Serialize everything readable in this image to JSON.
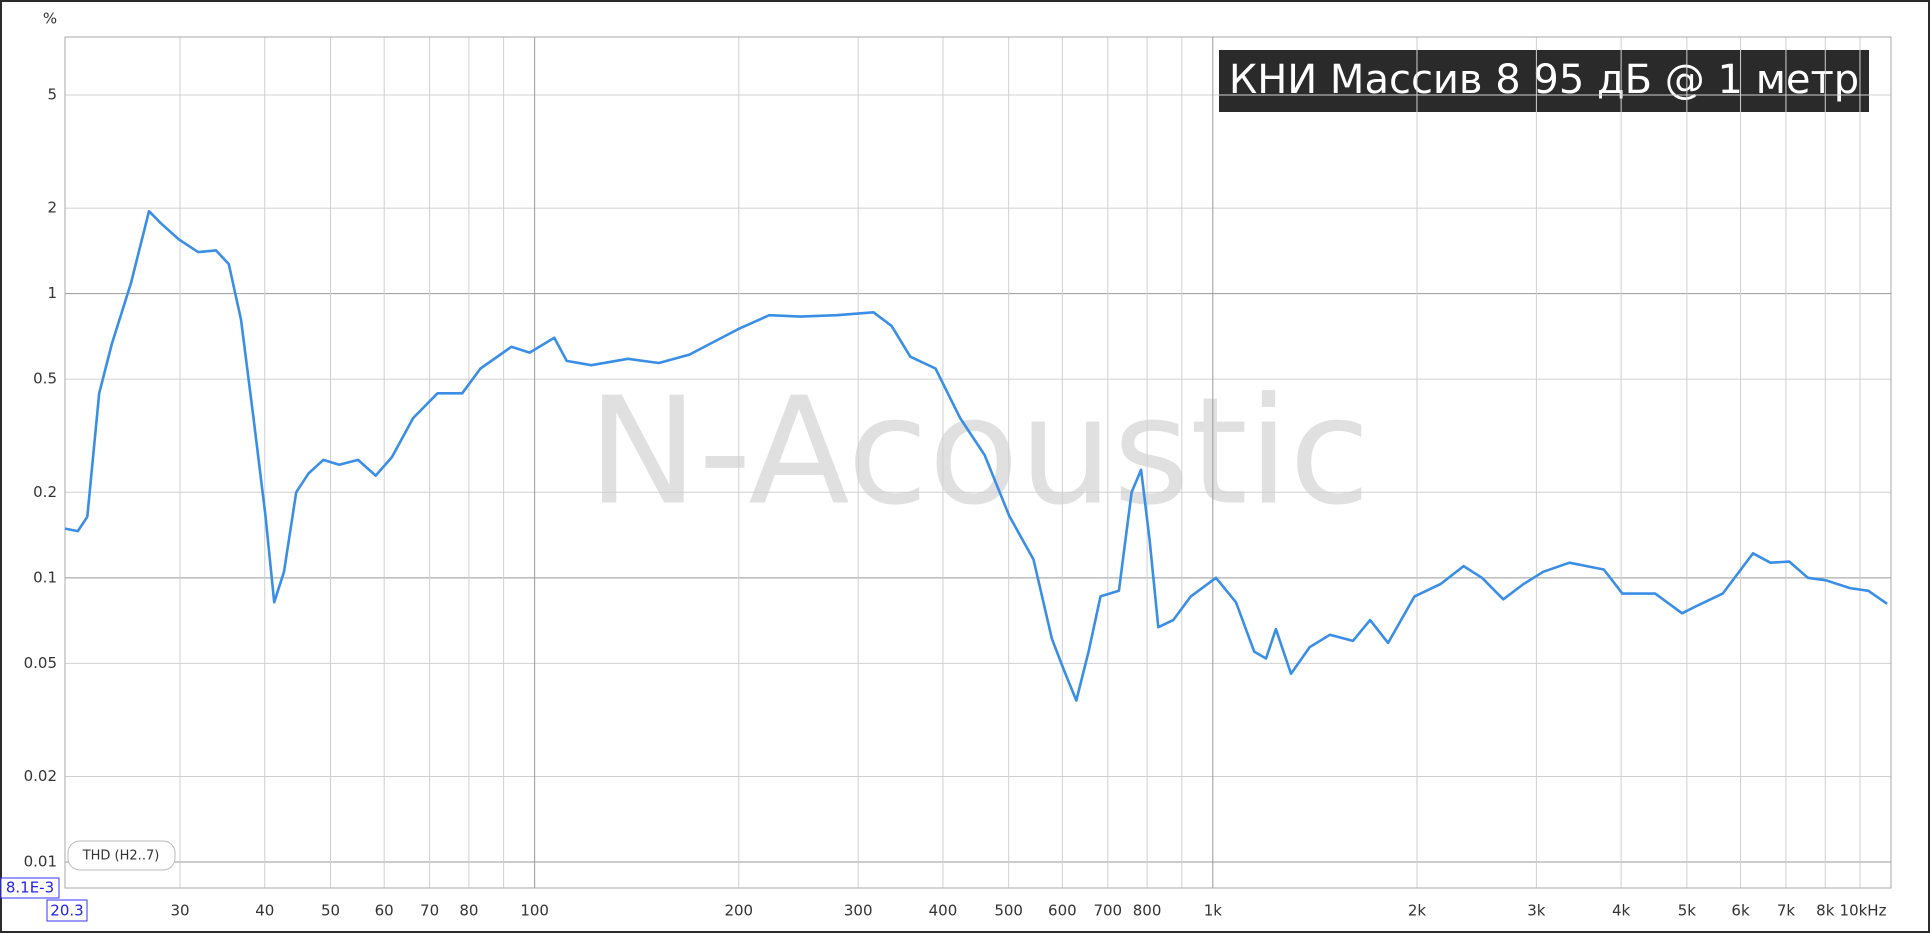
{
  "chart_data": {
    "type": "line",
    "title": "КНИ Массив 8 95 дБ @ 1 метр",
    "watermark": "N-Acoustic",
    "y_label": "%",
    "x_log": true,
    "y_log": true,
    "grid": true,
    "xlim": [
      20.3,
      10000
    ],
    "ylim": [
      0.0081,
      8
    ],
    "xticks": [
      20.3,
      30,
      40,
      50,
      60,
      70,
      80,
      100,
      200,
      300,
      400,
      500,
      600,
      700,
      800,
      {
        "value": 1000,
        "label": "1k"
      },
      {
        "value": 2000,
        "label": "2k"
      },
      {
        "value": 3000,
        "label": "3k"
      },
      {
        "value": 4000,
        "label": "4k"
      },
      {
        "value": 5000,
        "label": "5k"
      },
      {
        "value": 6000,
        "label": "6k"
      },
      {
        "value": 7000,
        "label": "7k"
      },
      {
        "value": 8000,
        "label": "8k"
      },
      {
        "value": 10000,
        "label": "10kHz"
      }
    ],
    "xminor": [
      90,
      900,
      9000
    ],
    "yticks": [
      {
        "value": 0.0081,
        "label": "8.1E-3"
      },
      0.01,
      0.02,
      0.05,
      0.1,
      0.2,
      0.5,
      1,
      2,
      5
    ],
    "series": [
      {
        "name": "THD (H2..7)",
        "color": "#3a8ee6",
        "x": [
          20.3,
          21.2,
          21.9,
          22.8,
          23.8,
          25.4,
          27.0,
          28.1,
          29.9,
          31.9,
          33.9,
          35.4,
          36.9,
          38.5,
          40.1,
          41.3,
          42.7,
          44.5,
          46.4,
          48.8,
          51.5,
          54.9,
          58.3,
          61.6,
          66.2,
          71.9,
          78.2,
          83.2,
          92.4,
          98.3,
          106.9,
          111.5,
          121.2,
          137.3,
          152.5,
          169.1,
          199.6,
          221.8,
          246.4,
          279,
          316,
          336,
          358,
          390,
          424,
          461,
          501,
          544,
          579,
          604,
          629,
          656,
          683,
          727,
          759,
          784,
          807,
          831,
          874,
          928,
          1011,
          1082,
          1151,
          1198,
          1239,
          1304,
          1389,
          1488,
          1609,
          1706,
          1813,
          1983,
          2166,
          2343,
          2494,
          2681,
          2871,
          3070,
          3357,
          3558,
          3772,
          4018,
          4490,
          4920,
          5189,
          5647,
          6259,
          6641,
          7079,
          7541,
          8020,
          8700,
          9260,
          9870
        ],
        "values": [
          0.149,
          0.146,
          0.164,
          0.446,
          0.665,
          1.09,
          1.95,
          1.77,
          1.55,
          1.4,
          1.42,
          1.27,
          0.81,
          0.365,
          0.165,
          0.082,
          0.105,
          0.2,
          0.233,
          0.26,
          0.25,
          0.26,
          0.229,
          0.266,
          0.365,
          0.446,
          0.446,
          0.545,
          0.65,
          0.62,
          0.7,
          0.58,
          0.56,
          0.59,
          0.57,
          0.61,
          0.75,
          0.84,
          0.83,
          0.84,
          0.86,
          0.77,
          0.6,
          0.545,
          0.365,
          0.27,
          0.165,
          0.116,
          0.061,
          0.047,
          0.037,
          0.055,
          0.086,
          0.09,
          0.2,
          0.24,
          0.135,
          0.067,
          0.071,
          0.086,
          0.1,
          0.082,
          0.055,
          0.052,
          0.066,
          0.046,
          0.057,
          0.063,
          0.06,
          0.071,
          0.059,
          0.086,
          0.095,
          0.11,
          0.1,
          0.084,
          0.095,
          0.105,
          0.113,
          0.11,
          0.107,
          0.088,
          0.088,
          0.075,
          0.08,
          0.088,
          0.122,
          0.113,
          0.114,
          0.1,
          0.098,
          0.092,
          0.09,
          0.081
        ]
      }
    ]
  }
}
